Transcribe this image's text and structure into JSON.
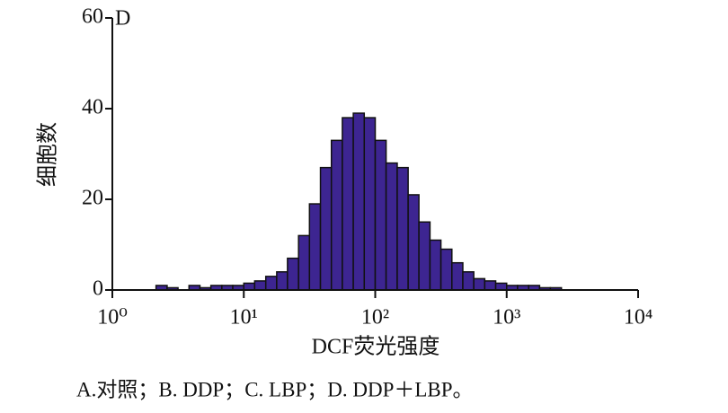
{
  "chart_data": {
    "type": "histogram",
    "title": "D",
    "ylabel": "细胞数",
    "xlabel": "DCF荧光强度",
    "bins": [
      1,
      1.21,
      1.47,
      1.78,
      2.15,
      2.61,
      3.16,
      3.83,
      4.64,
      5.62,
      6.81,
      8.25,
      10,
      12.1,
      14.7,
      17.8,
      21.5,
      26.1,
      31.6,
      38.3,
      46.4,
      56.2,
      68.1,
      82.5,
      100,
      121,
      147,
      178,
      215,
      261,
      316,
      383,
      464,
      562,
      681,
      825,
      1000,
      1210,
      1470,
      1780,
      2150,
      2610,
      3160,
      3830,
      4640,
      5620,
      6810,
      8250,
      10000
    ],
    "counts": [
      0,
      0,
      0,
      0,
      1,
      0.5,
      0,
      1,
      0.5,
      1,
      1,
      1,
      1.5,
      2,
      3,
      4,
      7,
      12,
      19,
      27,
      33,
      38,
      39,
      38,
      33,
      28,
      27,
      21,
      15,
      11,
      9,
      6,
      4,
      2.5,
      2,
      1.5,
      1,
      1,
      1,
      0.5,
      0.5,
      0,
      0,
      0,
      0,
      0,
      0,
      0
    ],
    "color": "#3d2591",
    "xlog": true,
    "xlim": [
      1,
      10000
    ],
    "xticks": [
      {
        "value": 1,
        "label": "10⁰"
      },
      {
        "value": 10,
        "label": "10¹"
      },
      {
        "value": 100,
        "label": "10²"
      },
      {
        "value": 1000,
        "label": "10³"
      },
      {
        "value": 10000,
        "label": "10⁴"
      }
    ],
    "ylim": [
      0,
      60
    ],
    "yticks": [
      0,
      20,
      40,
      60
    ]
  },
  "caption": "A.对照；B. DDP；C. LBP；D. DDP＋LBP。"
}
